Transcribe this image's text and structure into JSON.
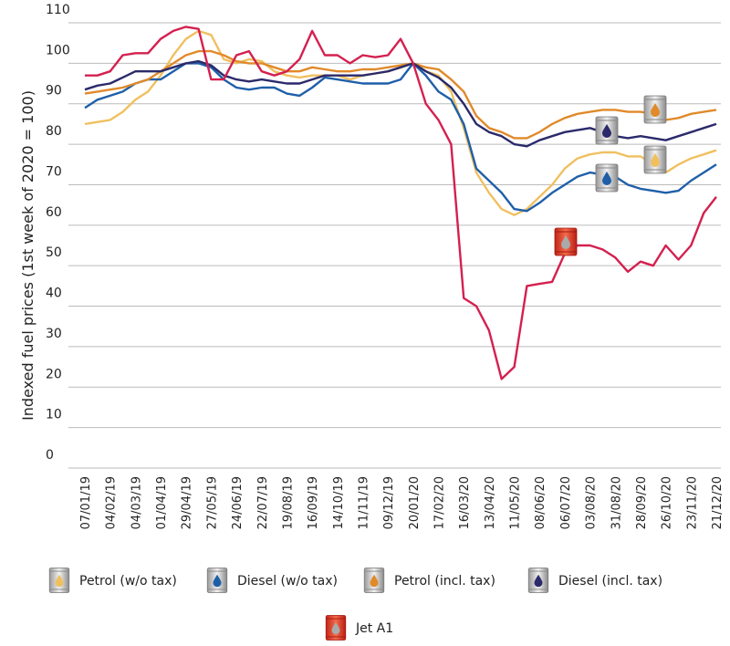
{
  "chart_data": {
    "type": "line",
    "y_label": "Indexed fuel prices (1st week of 2020 = 100)",
    "categories": [
      "07/01/19",
      null,
      "04/02/19",
      null,
      "04/03/19",
      null,
      "01/04/19",
      null,
      "29/04/19",
      null,
      "27/05/19",
      null,
      "24/06/19",
      null,
      "22/07/19",
      null,
      "19/08/19",
      null,
      "16/09/19",
      null,
      "14/10/19",
      null,
      "11/11/19",
      null,
      "09/12/19",
      null,
      "20/01/20",
      null,
      "17/02/20",
      null,
      "16/03/20",
      null,
      "13/04/20",
      null,
      "11/05/20",
      null,
      "08/06/20",
      null,
      "06/07/20",
      null,
      "03/08/20",
      null,
      "31/08/20",
      null,
      "28/09/20",
      null,
      "26/10/20",
      null,
      "23/11/20",
      null,
      "21/12/20"
    ],
    "series": [
      {
        "name": "Petrol (w/o tax)",
        "color": "#f0c060",
        "values": [
          85,
          85.5,
          86,
          88,
          91,
          93,
          97,
          102,
          106,
          108,
          107,
          101,
          100,
          101,
          100.5,
          98,
          97,
          96.5,
          97,
          97,
          97,
          96,
          97,
          97.5,
          98,
          99,
          100,
          98,
          97,
          93,
          84,
          73,
          68,
          64,
          62.5,
          64,
          67,
          70,
          74,
          76.5,
          77.5,
          78,
          78,
          77,
          77,
          75,
          73,
          75,
          76.5,
          77.5,
          78.5
        ]
      },
      {
        "name": "Diesel (w/o tax)",
        "color": "#1f5fa8",
        "values": [
          89,
          91,
          92,
          93,
          95,
          96,
          96,
          98,
          100,
          100,
          99,
          96,
          94,
          93.5,
          94,
          94,
          92.5,
          92,
          94,
          96.5,
          96,
          95.5,
          95,
          95,
          95,
          96,
          100,
          97,
          93,
          91,
          85,
          74,
          71,
          68,
          64,
          63.5,
          65.5,
          68,
          70,
          72,
          73,
          72.5,
          72,
          70,
          69,
          68.5,
          68,
          68.5,
          71,
          73,
          75
        ]
      },
      {
        "name": "Petrol (incl. tax)",
        "color": "#e08a2a",
        "values": [
          92.5,
          93,
          93.5,
          94,
          95,
          96,
          98,
          100,
          102,
          103,
          103,
          102,
          100.5,
          100,
          100,
          99,
          98,
          98,
          99,
          98.5,
          98,
          98,
          98.5,
          98.5,
          99,
          99.5,
          100,
          99,
          98.5,
          96,
          93,
          87,
          84,
          83,
          81.5,
          81.5,
          83,
          85,
          86.5,
          87.5,
          88,
          88.5,
          88.5,
          88,
          88,
          87.5,
          86,
          86.5,
          87.5,
          88,
          88.5
        ]
      },
      {
        "name": "Diesel (incl. tax)",
        "color": "#2b2a6b",
        "values": [
          93.5,
          94.5,
          95,
          96.5,
          98,
          98,
          98,
          99,
          100,
          100.5,
          99.5,
          97,
          96,
          95.5,
          96,
          95.5,
          95,
          95,
          96,
          97,
          97,
          97,
          97,
          97.5,
          98,
          99,
          100,
          98,
          96.5,
          94,
          90,
          85,
          83,
          82,
          80,
          79.5,
          81,
          82,
          83,
          83.5,
          84,
          83,
          82,
          81.5,
          82,
          81.5,
          81,
          82,
          83,
          84,
          85
        ]
      },
      {
        "name": "Jet A1",
        "color": "#d4204f",
        "values": [
          97,
          97,
          98,
          102,
          102.5,
          102.5,
          106,
          108,
          109,
          108.5,
          96,
          96,
          102,
          103,
          98,
          97,
          98,
          101,
          108,
          102,
          102,
          100,
          102,
          101.5,
          102,
          106,
          100,
          90,
          86,
          80,
          42,
          40,
          34,
          22,
          25,
          45,
          45.5,
          46,
          53,
          55,
          55,
          54,
          52,
          48.5,
          51,
          50,
          55,
          51.5,
          55,
          63,
          67
        ]
      }
    ],
    "ylim": [
      0,
      110
    ],
    "yticks": [
      0,
      10,
      20,
      30,
      40,
      50,
      60,
      70,
      80,
      90,
      100,
      110
    ],
    "grid": true
  }
}
